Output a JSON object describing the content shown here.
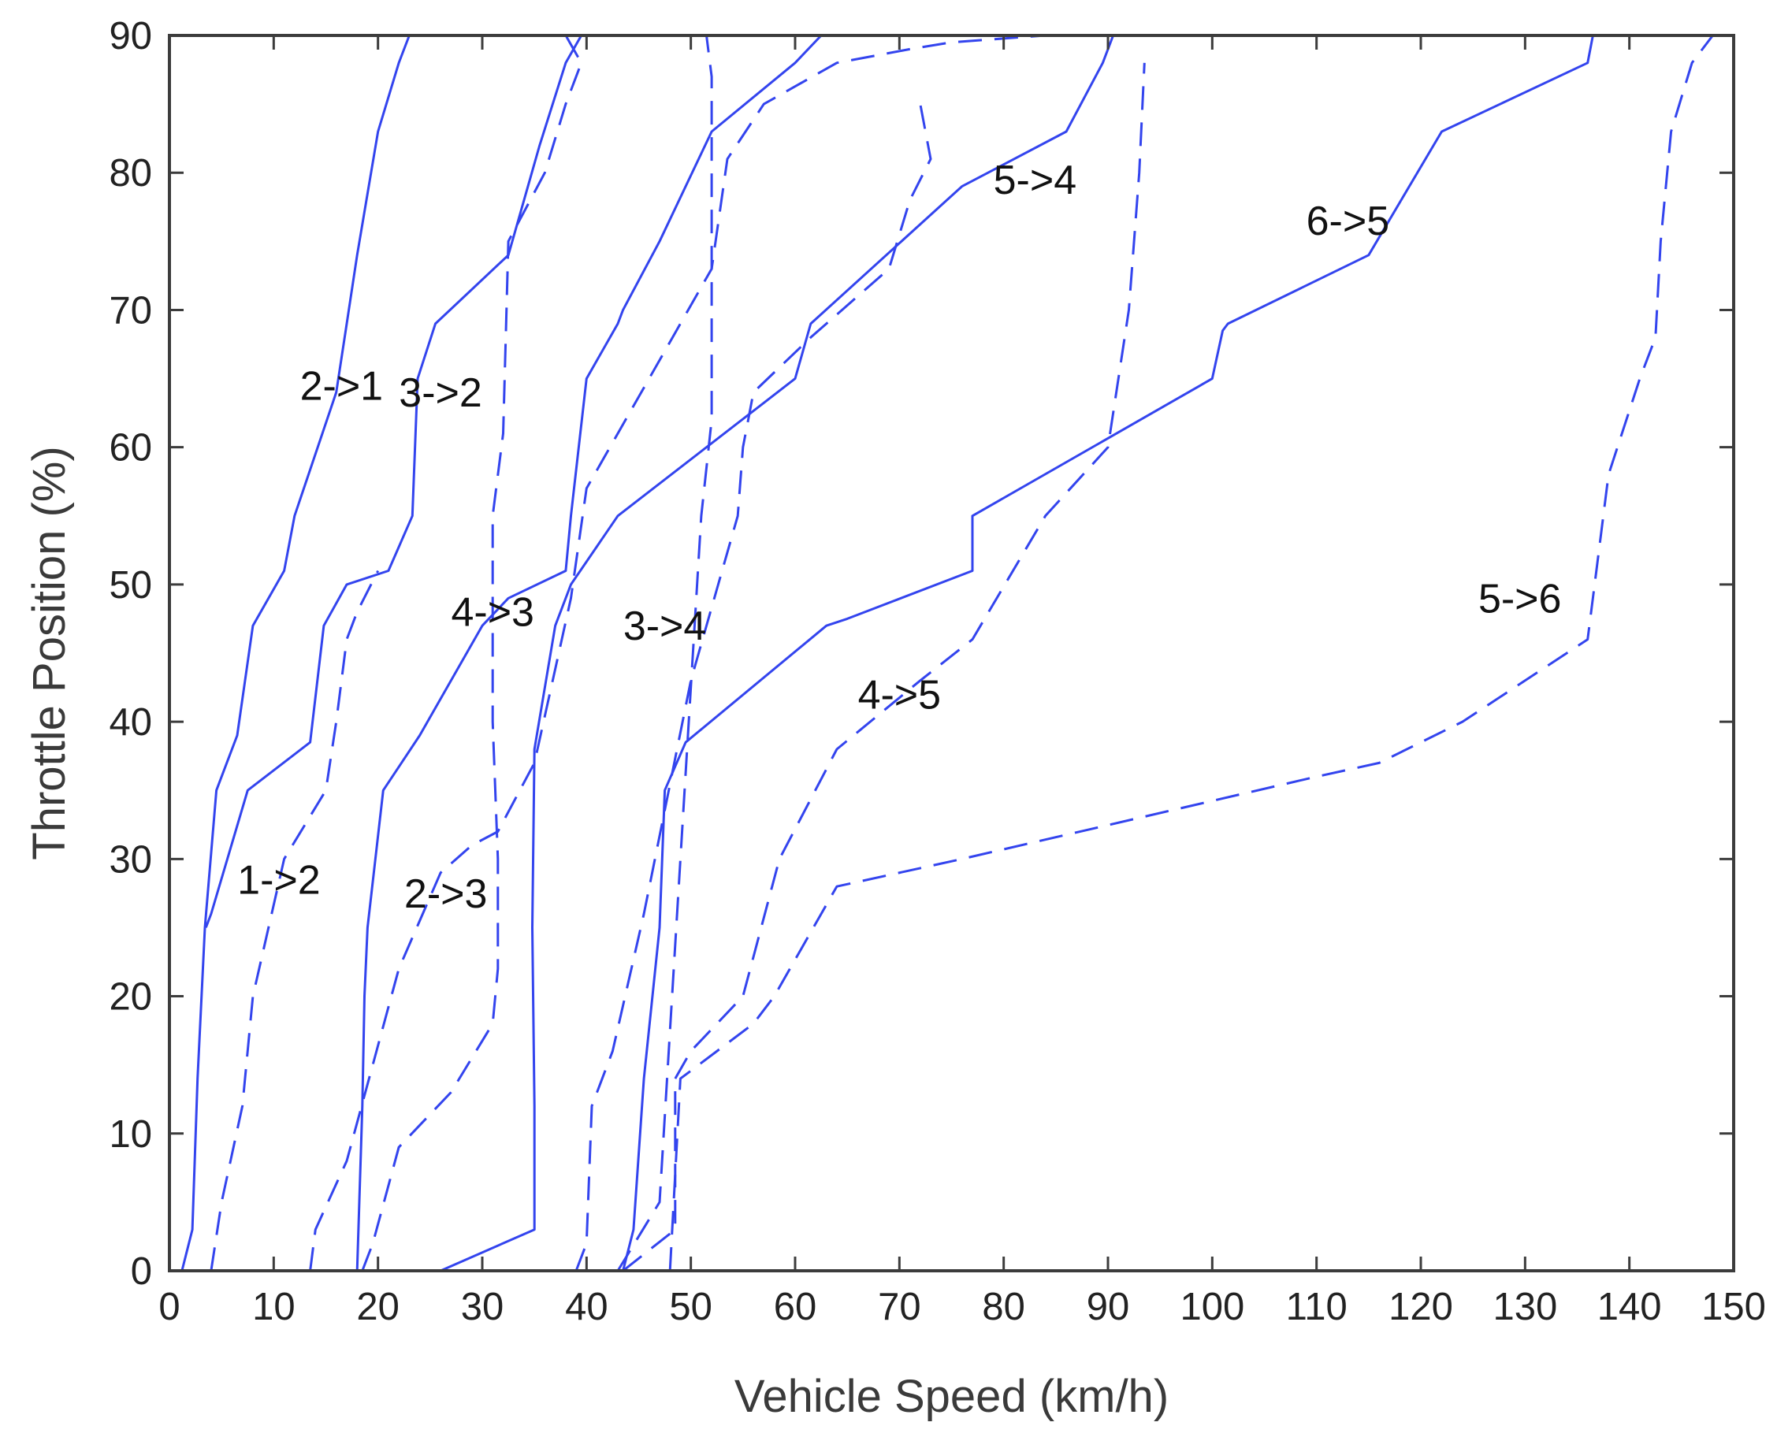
{
  "chart_data": {
    "type": "line",
    "xlabel": "Vehicle Speed (km/h)",
    "ylabel": "Throttle Position (%)",
    "xlim": [
      0,
      150
    ],
    "ylim": [
      0,
      90
    ],
    "xticks": [
      0,
      10,
      20,
      30,
      40,
      50,
      60,
      70,
      80,
      90,
      100,
      110,
      120,
      130,
      140,
      150
    ],
    "yticks": [
      0,
      10,
      20,
      30,
      40,
      50,
      60,
      70,
      80,
      90
    ],
    "grid": false,
    "legend": "none",
    "line_color": "#3344ee",
    "series": [
      {
        "name": "2->1",
        "style": "solid",
        "x": [
          1.2,
          2.2,
          2.7,
          3.4,
          4.5,
          6.5,
          8.0,
          11.0,
          12.0,
          16.0,
          17.0,
          18.0,
          20.0,
          22.0,
          23.0
        ],
        "y": [
          0,
          3,
          14,
          25,
          35,
          39,
          47,
          51,
          55,
          64,
          69,
          74,
          83,
          88,
          90
        ]
      },
      {
        "name": "1->2",
        "style": "solid",
        "x": [
          3.5,
          4.0,
          7.5,
          13.5,
          14.8,
          17.0,
          21.0,
          23.3,
          23.8,
          25.5,
          32.5,
          35.5,
          38.0,
          39.5
        ],
        "y": [
          25,
          26,
          35,
          38.5,
          47,
          50,
          51,
          55,
          65,
          69,
          74,
          82,
          88,
          90
        ]
      },
      {
        "name": "3->2",
        "style": "solid",
        "x": [
          18.0,
          18.5,
          18.7,
          19.0,
          20.5,
          24.0,
          30.0,
          32.5,
          38.0,
          38.5,
          40.0,
          43.0,
          43.5,
          47.0,
          52.0,
          60.0,
          62.5
        ],
        "y": [
          0,
          12,
          20,
          25,
          35,
          39,
          47,
          49,
          51,
          55,
          65,
          69,
          70,
          75,
          83,
          88,
          90
        ]
      },
      {
        "name": "2->3",
        "style": "solid",
        "x": [
          26.0,
          35.0,
          35.0,
          34.8,
          35.0,
          37.0,
          38.5,
          43.0,
          60.0,
          61.5,
          76.0,
          86.0,
          89.5,
          90.5
        ],
        "y": [
          0,
          3,
          12,
          25,
          38,
          47,
          50,
          55,
          65,
          69,
          79,
          83,
          88,
          90
        ]
      },
      {
        "name": "4->3",
        "style": "solid",
        "x": [
          43.5,
          44.5,
          45.5,
          47.0,
          47.5,
          49.5,
          63.0,
          65.0,
          77.0,
          77.0,
          100.0,
          101.0,
          101.5,
          115.0,
          122.0,
          136.0,
          136.5
        ],
        "y": [
          0,
          3,
          14,
          25,
          35,
          38.5,
          47,
          47.5,
          51,
          55,
          65,
          68.5,
          69,
          74,
          83,
          88,
          90
        ]
      },
      {
        "name": "1->2",
        "style": "dashed",
        "x": [
          4.0,
          5.0,
          7.0,
          8.0,
          11.0,
          15.0,
          16.0,
          17.0,
          18.0,
          20.0
        ],
        "y": [
          0,
          5,
          12,
          20,
          30,
          35,
          40,
          46,
          48,
          51
        ]
      },
      {
        "name": "2->3",
        "style": "dashed",
        "x": [
          13.5,
          14.0,
          17.0,
          22.0,
          26.0,
          29.0,
          31.5,
          35.0,
          38.5,
          40.0,
          52.0,
          53.5,
          57.0,
          64.0,
          71.0,
          75.0,
          84.0
        ],
        "y": [
          0,
          3,
          8,
          22,
          29,
          31,
          32,
          37,
          49,
          57,
          73,
          81,
          85,
          88,
          89,
          89.5,
          90
        ]
      },
      {
        "name": "3->2",
        "style": "dashed",
        "x": [
          18.5,
          19.5,
          22.0,
          27.0,
          31.0,
          31.5,
          31.5,
          31.0,
          31.0,
          32.0,
          32.5,
          36.0,
          38.0,
          39.5,
          38.0
        ],
        "y": [
          0,
          2,
          9,
          13,
          18,
          22,
          30,
          40,
          55,
          61,
          75,
          80,
          85,
          88,
          90
        ]
      },
      {
        "name": "3->4",
        "style": "dashed",
        "x": [
          39.0,
          40.0,
          40.5,
          42.5,
          45.5,
          50.0,
          54.5,
          55.0,
          55.5,
          56.0,
          61.5,
          69.0,
          71.0,
          73.0,
          72.0
        ],
        "y": [
          0,
          2,
          12,
          16,
          26,
          43,
          55,
          60,
          62,
          64,
          68,
          73,
          78,
          81,
          85
        ]
      },
      {
        "name": "3->4",
        "style": "dashed",
        "x": [
          43.5,
          48.5,
          48.5,
          50.0,
          55.0,
          58.5,
          64.0,
          72.0,
          77.0,
          84.0,
          90.0,
          92.0,
          93.0,
          93.5
        ],
        "y": [
          0,
          3,
          14,
          16,
          20,
          30,
          38,
          43,
          46,
          55,
          60,
          70,
          80,
          88
        ]
      },
      {
        "name": "4->5",
        "style": "dashed",
        "x": [
          48.0,
          49.0,
          56.0,
          58.0,
          64.0,
          76.0,
          93.0,
          110.0,
          116.0,
          124.0,
          132.0,
          136.0,
          137.0,
          137.5,
          138.0,
          141.0,
          142.5,
          143.0,
          144.0,
          146.0,
          148.0
        ],
        "y": [
          0,
          14,
          18,
          20,
          28,
          30,
          33,
          36,
          37,
          40,
          44,
          46,
          52,
          55,
          58,
          65,
          68,
          75,
          83,
          88,
          90
        ]
      },
      {
        "name": "5->6",
        "style": "dashed",
        "x": [
          43.0,
          47.0,
          51.0,
          52.0,
          52.0,
          52.0,
          51.5
        ],
        "y": [
          0,
          5,
          55,
          62,
          75,
          87,
          90
        ]
      }
    ],
    "annotations": [
      {
        "text": "2->1",
        "x": 16.5,
        "y": 64.5
      },
      {
        "text": "3->2",
        "x": 26.0,
        "y": 64.0
      },
      {
        "text": "4->3",
        "x": 31.0,
        "y": 48.0
      },
      {
        "text": "3->4",
        "x": 47.5,
        "y": 47.0
      },
      {
        "text": "5->4",
        "x": 83.0,
        "y": 79.5
      },
      {
        "text": "6->5",
        "x": 113.0,
        "y": 76.5
      },
      {
        "text": "5->6",
        "x": 129.5,
        "y": 49.0
      },
      {
        "text": "4->5",
        "x": 70.0,
        "y": 42.0
      },
      {
        "text": "1->2",
        "x": 10.5,
        "y": 28.5
      },
      {
        "text": "2->3",
        "x": 26.5,
        "y": 27.5
      }
    ]
  }
}
